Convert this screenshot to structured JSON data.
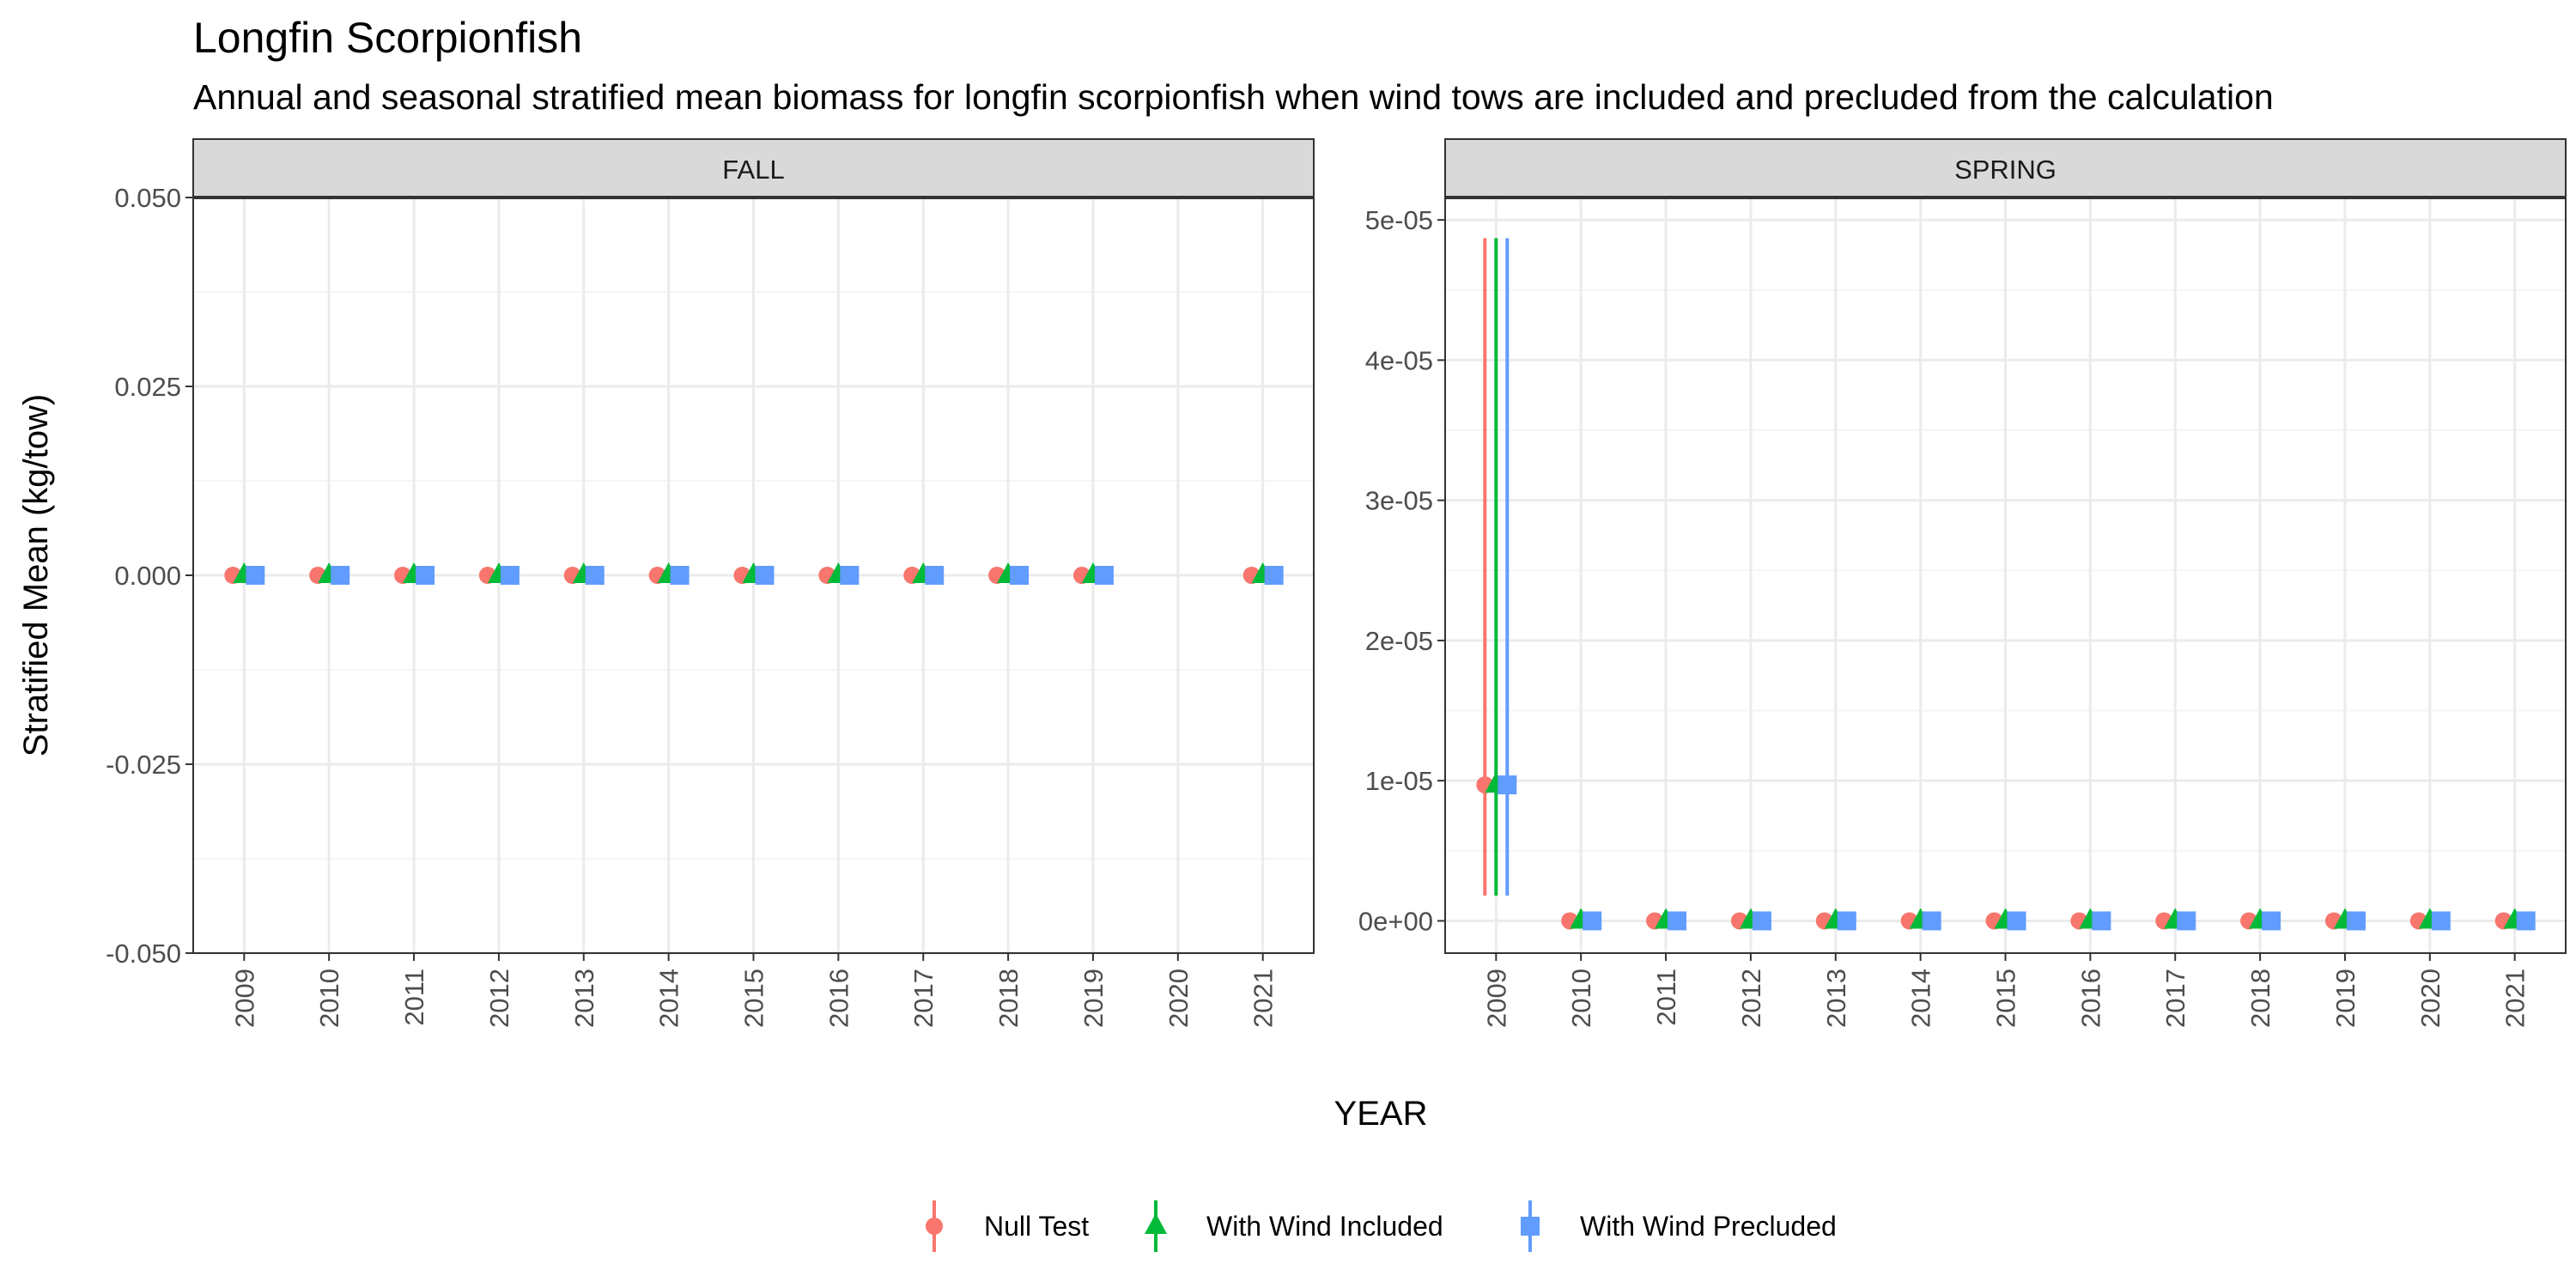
{
  "title": "Longfin Scorpionfish",
  "subtitle": "Annual and seasonal stratified mean biomass for longfin scorpionfish when wind tows are included and precluded from the calculation",
  "xlabel": "YEAR",
  "ylabel": "Stratified Mean (kg/tow)",
  "colors": {
    "Null Test": "#F8766D",
    "With Wind Included": "#00BA38",
    "With Wind Precluded": "#619CFF",
    "panel_border": "#333333",
    "strip_fill": "#D9D9D9",
    "grid_major": "#EBEBEB",
    "grid_minor": "#F5F5F5"
  },
  "legend": {
    "position": "bottom",
    "items": [
      {
        "label": "Null Test",
        "shape": "circle"
      },
      {
        "label": "With Wind Included",
        "shape": "triangle"
      },
      {
        "label": "With Wind Precluded",
        "shape": "square"
      }
    ]
  },
  "chart_data": [
    {
      "type": "scatter",
      "panel": "FALL",
      "categories": [
        "2009",
        "2010",
        "2011",
        "2012",
        "2013",
        "2014",
        "2015",
        "2016",
        "2017",
        "2018",
        "2019",
        "2020",
        "2021"
      ],
      "ylim": [
        -0.05,
        0.05
      ],
      "yticks": [
        -0.05,
        -0.025,
        0.0,
        0.025,
        0.05
      ],
      "ytick_labels": [
        "-0.050",
        "-0.025",
        "0.000",
        "0.025",
        "0.050"
      ],
      "grid": true,
      "series": [
        {
          "name": "Null Test",
          "points": [
            {
              "x": "2009",
              "y": 0,
              "ymin": 0,
              "ymax": 0
            },
            {
              "x": "2010",
              "y": 0,
              "ymin": 0,
              "ymax": 0
            },
            {
              "x": "2011",
              "y": 0,
              "ymin": 0,
              "ymax": 0
            },
            {
              "x": "2012",
              "y": 0,
              "ymin": 0,
              "ymax": 0
            },
            {
              "x": "2013",
              "y": 0,
              "ymin": 0,
              "ymax": 0
            },
            {
              "x": "2014",
              "y": 0,
              "ymin": 0,
              "ymax": 0
            },
            {
              "x": "2015",
              "y": 0,
              "ymin": 0,
              "ymax": 0
            },
            {
              "x": "2016",
              "y": 0,
              "ymin": 0,
              "ymax": 0
            },
            {
              "x": "2017",
              "y": 0,
              "ymin": 0,
              "ymax": 0
            },
            {
              "x": "2018",
              "y": 0,
              "ymin": 0,
              "ymax": 0
            },
            {
              "x": "2019",
              "y": 0,
              "ymin": 0,
              "ymax": 0
            },
            {
              "x": "2021",
              "y": 0,
              "ymin": 0,
              "ymax": 0
            }
          ]
        },
        {
          "name": "With Wind Included",
          "points": [
            {
              "x": "2009",
              "y": 0,
              "ymin": 0,
              "ymax": 0
            },
            {
              "x": "2010",
              "y": 0,
              "ymin": 0,
              "ymax": 0
            },
            {
              "x": "2011",
              "y": 0,
              "ymin": 0,
              "ymax": 0
            },
            {
              "x": "2012",
              "y": 0,
              "ymin": 0,
              "ymax": 0
            },
            {
              "x": "2013",
              "y": 0,
              "ymin": 0,
              "ymax": 0
            },
            {
              "x": "2014",
              "y": 0,
              "ymin": 0,
              "ymax": 0
            },
            {
              "x": "2015",
              "y": 0,
              "ymin": 0,
              "ymax": 0
            },
            {
              "x": "2016",
              "y": 0,
              "ymin": 0,
              "ymax": 0
            },
            {
              "x": "2017",
              "y": 0,
              "ymin": 0,
              "ymax": 0
            },
            {
              "x": "2018",
              "y": 0,
              "ymin": 0,
              "ymax": 0
            },
            {
              "x": "2019",
              "y": 0,
              "ymin": 0,
              "ymax": 0
            },
            {
              "x": "2021",
              "y": 0,
              "ymin": 0,
              "ymax": 0
            }
          ]
        },
        {
          "name": "With Wind Precluded",
          "points": [
            {
              "x": "2009",
              "y": 0,
              "ymin": 0,
              "ymax": 0
            },
            {
              "x": "2010",
              "y": 0,
              "ymin": 0,
              "ymax": 0
            },
            {
              "x": "2011",
              "y": 0,
              "ymin": 0,
              "ymax": 0
            },
            {
              "x": "2012",
              "y": 0,
              "ymin": 0,
              "ymax": 0
            },
            {
              "x": "2013",
              "y": 0,
              "ymin": 0,
              "ymax": 0
            },
            {
              "x": "2014",
              "y": 0,
              "ymin": 0,
              "ymax": 0
            },
            {
              "x": "2015",
              "y": 0,
              "ymin": 0,
              "ymax": 0
            },
            {
              "x": "2016",
              "y": 0,
              "ymin": 0,
              "ymax": 0
            },
            {
              "x": "2017",
              "y": 0,
              "ymin": 0,
              "ymax": 0
            },
            {
              "x": "2018",
              "y": 0,
              "ymin": 0,
              "ymax": 0
            },
            {
              "x": "2019",
              "y": 0,
              "ymin": 0,
              "ymax": 0
            },
            {
              "x": "2021",
              "y": 0,
              "ymin": 0,
              "ymax": 0
            }
          ]
        }
      ]
    },
    {
      "type": "scatter",
      "panel": "SPRING",
      "categories": [
        "2009",
        "2010",
        "2011",
        "2012",
        "2013",
        "2014",
        "2015",
        "2016",
        "2017",
        "2018",
        "2019",
        "2020",
        "2021"
      ],
      "ylim": [
        -2.3e-06,
        5.16e-05
      ],
      "yticks": [
        0,
        1e-05,
        2e-05,
        3e-05,
        4e-05,
        5e-05
      ],
      "ytick_labels": [
        "0e+00",
        "1e-05",
        "2e-05",
        "3e-05",
        "4e-05",
        "5e-05"
      ],
      "grid": true,
      "series": [
        {
          "name": "Null Test",
          "points": [
            {
              "x": "2009",
              "y": 9.7e-06,
              "ymin": 1.8e-06,
              "ymax": 4.87e-05
            },
            {
              "x": "2010",
              "y": 0,
              "ymin": 0,
              "ymax": 0
            },
            {
              "x": "2011",
              "y": 0,
              "ymin": 0,
              "ymax": 0
            },
            {
              "x": "2012",
              "y": 0,
              "ymin": 0,
              "ymax": 0
            },
            {
              "x": "2013",
              "y": 0,
              "ymin": 0,
              "ymax": 0
            },
            {
              "x": "2014",
              "y": 0,
              "ymin": 0,
              "ymax": 0
            },
            {
              "x": "2015",
              "y": 0,
              "ymin": 0,
              "ymax": 0
            },
            {
              "x": "2016",
              "y": 0,
              "ymin": 0,
              "ymax": 0
            },
            {
              "x": "2017",
              "y": 0,
              "ymin": 0,
              "ymax": 0
            },
            {
              "x": "2018",
              "y": 0,
              "ymin": 0,
              "ymax": 0
            },
            {
              "x": "2019",
              "y": 0,
              "ymin": 0,
              "ymax": 0
            },
            {
              "x": "2020",
              "y": 0,
              "ymin": 0,
              "ymax": 0
            },
            {
              "x": "2021",
              "y": 0,
              "ymin": 0,
              "ymax": 0
            }
          ]
        },
        {
          "name": "With Wind Included",
          "points": [
            {
              "x": "2009",
              "y": 9.7e-06,
              "ymin": 1.8e-06,
              "ymax": 4.87e-05
            },
            {
              "x": "2010",
              "y": 0,
              "ymin": 0,
              "ymax": 0
            },
            {
              "x": "2011",
              "y": 0,
              "ymin": 0,
              "ymax": 0
            },
            {
              "x": "2012",
              "y": 0,
              "ymin": 0,
              "ymax": 0
            },
            {
              "x": "2013",
              "y": 0,
              "ymin": 0,
              "ymax": 0
            },
            {
              "x": "2014",
              "y": 0,
              "ymin": 0,
              "ymax": 0
            },
            {
              "x": "2015",
              "y": 0,
              "ymin": 0,
              "ymax": 0
            },
            {
              "x": "2016",
              "y": 0,
              "ymin": 0,
              "ymax": 0
            },
            {
              "x": "2017",
              "y": 0,
              "ymin": 0,
              "ymax": 0
            },
            {
              "x": "2018",
              "y": 0,
              "ymin": 0,
              "ymax": 0
            },
            {
              "x": "2019",
              "y": 0,
              "ymin": 0,
              "ymax": 0
            },
            {
              "x": "2020",
              "y": 0,
              "ymin": 0,
              "ymax": 0
            },
            {
              "x": "2021",
              "y": 0,
              "ymin": 0,
              "ymax": 0
            }
          ]
        },
        {
          "name": "With Wind Precluded",
          "points": [
            {
              "x": "2009",
              "y": 9.7e-06,
              "ymin": 1.8e-06,
              "ymax": 4.87e-05
            },
            {
              "x": "2010",
              "y": 0,
              "ymin": 0,
              "ymax": 0
            },
            {
              "x": "2011",
              "y": 0,
              "ymin": 0,
              "ymax": 0
            },
            {
              "x": "2012",
              "y": 0,
              "ymin": 0,
              "ymax": 0
            },
            {
              "x": "2013",
              "y": 0,
              "ymin": 0,
              "ymax": 0
            },
            {
              "x": "2014",
              "y": 0,
              "ymin": 0,
              "ymax": 0
            },
            {
              "x": "2015",
              "y": 0,
              "ymin": 0,
              "ymax": 0
            },
            {
              "x": "2016",
              "y": 0,
              "ymin": 0,
              "ymax": 0
            },
            {
              "x": "2017",
              "y": 0,
              "ymin": 0,
              "ymax": 0
            },
            {
              "x": "2018",
              "y": 0,
              "ymin": 0,
              "ymax": 0
            },
            {
              "x": "2019",
              "y": 0,
              "ymin": 0,
              "ymax": 0
            },
            {
              "x": "2020",
              "y": 0,
              "ymin": 0,
              "ymax": 0
            },
            {
              "x": "2021",
              "y": 0,
              "ymin": 0,
              "ymax": 0
            }
          ]
        }
      ]
    }
  ]
}
